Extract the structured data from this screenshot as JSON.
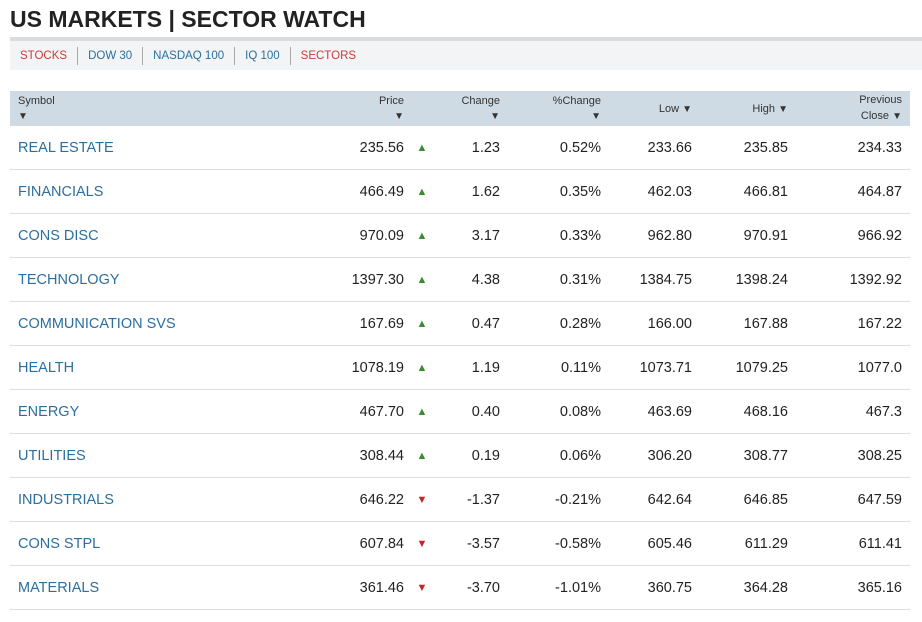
{
  "title": "US MARKETS | SECTOR WATCH",
  "tabs": [
    {
      "label": "STOCKS",
      "color": "red"
    },
    {
      "label": "DOW 30",
      "color": "blue"
    },
    {
      "label": "NASDAQ 100",
      "color": "blue"
    },
    {
      "label": "IQ 100",
      "color": "blue"
    },
    {
      "label": "SECTORS",
      "color": "red"
    }
  ],
  "columns": {
    "symbol": "Symbol",
    "price": "Price",
    "change": "Change",
    "pct": "%Change",
    "low": "Low",
    "high": "High",
    "prev1": "Previous",
    "prev2": "Close"
  },
  "rows": [
    {
      "symbol": "REAL ESTATE",
      "price": "235.56",
      "dir": "up",
      "change": "1.23",
      "pct": "0.52%",
      "low": "233.66",
      "high": "235.85",
      "prev": "234.33"
    },
    {
      "symbol": "FINANCIALS",
      "price": "466.49",
      "dir": "up",
      "change": "1.62",
      "pct": "0.35%",
      "low": "462.03",
      "high": "466.81",
      "prev": "464.87"
    },
    {
      "symbol": "CONS DISC",
      "price": "970.09",
      "dir": "up",
      "change": "3.17",
      "pct": "0.33%",
      "low": "962.80",
      "high": "970.91",
      "prev": "966.92"
    },
    {
      "symbol": "TECHNOLOGY",
      "price": "1397.30",
      "dir": "up",
      "change": "4.38",
      "pct": "0.31%",
      "low": "1384.75",
      "high": "1398.24",
      "prev": "1392.92"
    },
    {
      "symbol": "COMMUNICATION SVS",
      "price": "167.69",
      "dir": "up",
      "change": "0.47",
      "pct": "0.28%",
      "low": "166.00",
      "high": "167.88",
      "prev": "167.22"
    },
    {
      "symbol": "HEALTH",
      "price": "1078.19",
      "dir": "up",
      "change": "1.19",
      "pct": "0.11%",
      "low": "1073.71",
      "high": "1079.25",
      "prev": "1077.0"
    },
    {
      "symbol": "ENERGY",
      "price": "467.70",
      "dir": "up",
      "change": "0.40",
      "pct": "0.08%",
      "low": "463.69",
      "high": "468.16",
      "prev": "467.3"
    },
    {
      "symbol": "UTILITIES",
      "price": "308.44",
      "dir": "up",
      "change": "0.19",
      "pct": "0.06%",
      "low": "306.20",
      "high": "308.77",
      "prev": "308.25"
    },
    {
      "symbol": "INDUSTRIALS",
      "price": "646.22",
      "dir": "down",
      "change": "-1.37",
      "pct": "-0.21%",
      "low": "642.64",
      "high": "646.85",
      "prev": "647.59"
    },
    {
      "symbol": "CONS STPL",
      "price": "607.84",
      "dir": "down",
      "change": "-3.57",
      "pct": "-0.58%",
      "low": "605.46",
      "high": "611.29",
      "prev": "611.41"
    },
    {
      "symbol": "MATERIALS",
      "price": "361.46",
      "dir": "down",
      "change": "-3.70",
      "pct": "-1.01%",
      "low": "360.75",
      "high": "364.28",
      "prev": "365.16"
    }
  ]
}
